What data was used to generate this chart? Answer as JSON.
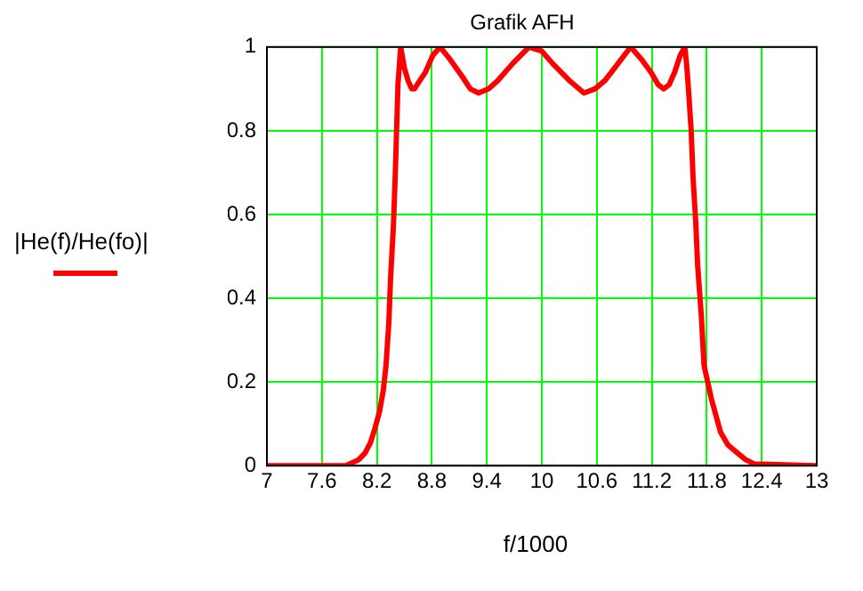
{
  "chart_data": {
    "type": "line",
    "title": "Grafik AFH",
    "xlabel": "f/1000",
    "ylabel": "|He(f)/He(fo)|",
    "x": [
      7,
      7.86,
      8.0,
      8.07,
      8.13,
      8.18,
      8.23,
      8.27,
      8.3,
      8.33,
      8.35,
      8.38,
      8.4,
      8.43,
      8.46,
      8.5,
      8.54,
      8.58,
      8.61,
      8.67,
      8.73,
      8.81,
      8.89,
      9.0,
      9.13,
      9.22,
      9.31,
      9.42,
      9.52,
      9.68,
      9.86,
      10.0,
      10.12,
      10.3,
      10.46,
      10.58,
      10.69,
      10.83,
      10.97,
      11.09,
      11.19,
      11.27,
      11.33,
      11.39,
      11.45,
      11.51,
      11.56,
      11.58,
      11.6,
      11.63,
      11.65,
      11.68,
      11.7,
      11.74,
      11.77,
      11.81,
      11.85,
      11.95,
      12.03,
      12.12,
      12.22,
      12.32,
      13
    ],
    "series": [
      {
        "color": "#ff0000",
        "values": [
          0,
          0,
          0.014,
          0.03,
          0.055,
          0.09,
          0.13,
          0.18,
          0.24,
          0.34,
          0.45,
          0.57,
          0.69,
          0.91,
          1.0,
          0.95,
          0.92,
          0.9,
          0.9,
          0.92,
          0.94,
          0.98,
          1.0,
          0.97,
          0.93,
          0.9,
          0.89,
          0.9,
          0.92,
          0.96,
          1.0,
          0.99,
          0.96,
          0.92,
          0.89,
          0.9,
          0.92,
          0.96,
          1.0,
          0.97,
          0.94,
          0.91,
          0.9,
          0.91,
          0.94,
          0.98,
          1.0,
          0.96,
          0.9,
          0.8,
          0.69,
          0.58,
          0.48,
          0.36,
          0.24,
          0.2,
          0.16,
          0.08,
          0.05,
          0.033,
          0.015,
          0.004,
          0
        ]
      }
    ],
    "xlim": [
      7,
      13
    ],
    "xticks": [
      7,
      7.6,
      8.2,
      8.8,
      9.4,
      10,
      10.6,
      11.2,
      11.8,
      12.4,
      13
    ],
    "ylim": [
      0,
      1
    ],
    "yticks": [
      0,
      0.2,
      0.4,
      0.6,
      0.8,
      1
    ],
    "grid": true,
    "marker": "none",
    "line_style": "solid"
  }
}
